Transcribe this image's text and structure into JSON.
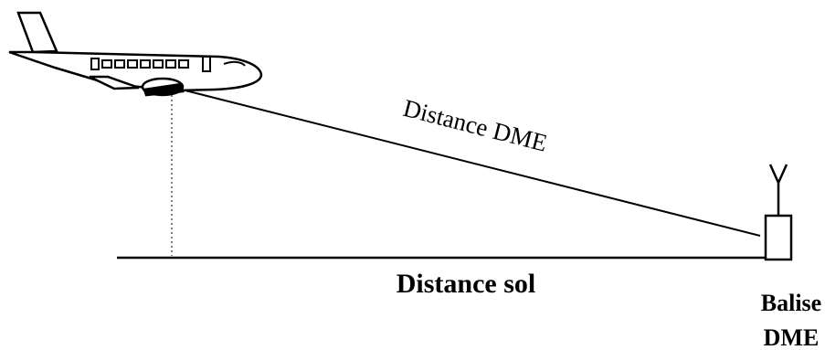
{
  "labels": {
    "slant_distance": "Distance DME",
    "ground_distance": "Distance sol",
    "beacon": [
      "Balise",
      "DME"
    ]
  }
}
